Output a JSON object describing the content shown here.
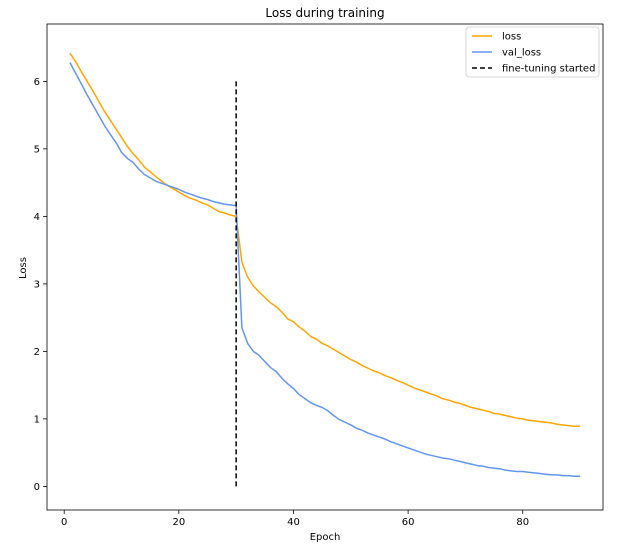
{
  "chart_data": {
    "type": "line",
    "title": "Loss during training",
    "xlabel": "Epoch",
    "ylabel": "Loss",
    "xlim": [
      -3,
      94
    ],
    "ylim": [
      -0.35,
      6.85
    ],
    "xticks": [
      0,
      20,
      40,
      60,
      80
    ],
    "yticks": [
      0,
      1,
      2,
      3,
      4,
      5,
      6
    ],
    "grid": false,
    "legend_position": "top-right",
    "x": [
      1,
      2,
      3,
      4,
      5,
      6,
      7,
      8,
      9,
      10,
      11,
      12,
      13,
      14,
      15,
      16,
      17,
      18,
      19,
      20,
      21,
      22,
      23,
      24,
      25,
      26,
      27,
      28,
      29,
      30,
      31,
      32,
      33,
      34,
      35,
      36,
      37,
      38,
      39,
      40,
      41,
      42,
      43,
      44,
      45,
      46,
      47,
      48,
      49,
      50,
      51,
      52,
      53,
      54,
      55,
      56,
      57,
      58,
      59,
      60,
      61,
      62,
      63,
      64,
      65,
      66,
      67,
      68,
      69,
      70,
      71,
      72,
      73,
      74,
      75,
      76,
      77,
      78,
      79,
      80,
      81,
      82,
      83,
      84,
      85,
      86,
      87,
      88,
      89,
      90
    ],
    "series": [
      {
        "name": "loss",
        "color": "#ffa500",
        "values": [
          6.42,
          6.29,
          6.14,
          6.0,
          5.86,
          5.71,
          5.56,
          5.43,
          5.3,
          5.17,
          5.04,
          4.93,
          4.84,
          4.73,
          4.66,
          4.59,
          4.52,
          4.46,
          4.41,
          4.36,
          4.31,
          4.27,
          4.24,
          4.2,
          4.17,
          4.12,
          4.07,
          4.05,
          4.02,
          4.0,
          3.32,
          3.1,
          2.97,
          2.88,
          2.8,
          2.72,
          2.66,
          2.58,
          2.48,
          2.44,
          2.36,
          2.3,
          2.22,
          2.18,
          2.12,
          2.08,
          2.03,
          1.98,
          1.93,
          1.88,
          1.84,
          1.79,
          1.75,
          1.71,
          1.68,
          1.64,
          1.61,
          1.57,
          1.54,
          1.5,
          1.46,
          1.43,
          1.4,
          1.37,
          1.34,
          1.3,
          1.28,
          1.25,
          1.23,
          1.2,
          1.17,
          1.15,
          1.13,
          1.11,
          1.08,
          1.07,
          1.05,
          1.03,
          1.01,
          1.0,
          0.98,
          0.97,
          0.96,
          0.95,
          0.94,
          0.92,
          0.91,
          0.9,
          0.89,
          0.89
        ]
      },
      {
        "name": "val_loss",
        "color": "#6495ed",
        "values": [
          6.28,
          6.12,
          5.96,
          5.8,
          5.65,
          5.5,
          5.35,
          5.22,
          5.1,
          4.95,
          4.86,
          4.8,
          4.7,
          4.62,
          4.57,
          4.52,
          4.49,
          4.46,
          4.43,
          4.4,
          4.36,
          4.33,
          4.3,
          4.27,
          4.25,
          4.22,
          4.2,
          4.18,
          4.17,
          4.16,
          2.35,
          2.12,
          2.0,
          1.94,
          1.85,
          1.76,
          1.7,
          1.6,
          1.52,
          1.45,
          1.36,
          1.3,
          1.24,
          1.2,
          1.17,
          1.12,
          1.05,
          0.99,
          0.95,
          0.91,
          0.86,
          0.83,
          0.79,
          0.76,
          0.73,
          0.7,
          0.66,
          0.63,
          0.6,
          0.57,
          0.54,
          0.51,
          0.48,
          0.46,
          0.44,
          0.42,
          0.41,
          0.39,
          0.37,
          0.35,
          0.33,
          0.31,
          0.3,
          0.28,
          0.27,
          0.26,
          0.24,
          0.23,
          0.22,
          0.22,
          0.21,
          0.2,
          0.19,
          0.18,
          0.17,
          0.17,
          0.16,
          0.16,
          0.15,
          0.15
        ]
      }
    ],
    "vline": {
      "name": "fine-tuning started",
      "x": 30,
      "y_range": [
        0,
        6
      ],
      "color": "#000000",
      "style": "dashed"
    },
    "legend": [
      "loss",
      "val_loss",
      "fine-tuning started"
    ]
  }
}
